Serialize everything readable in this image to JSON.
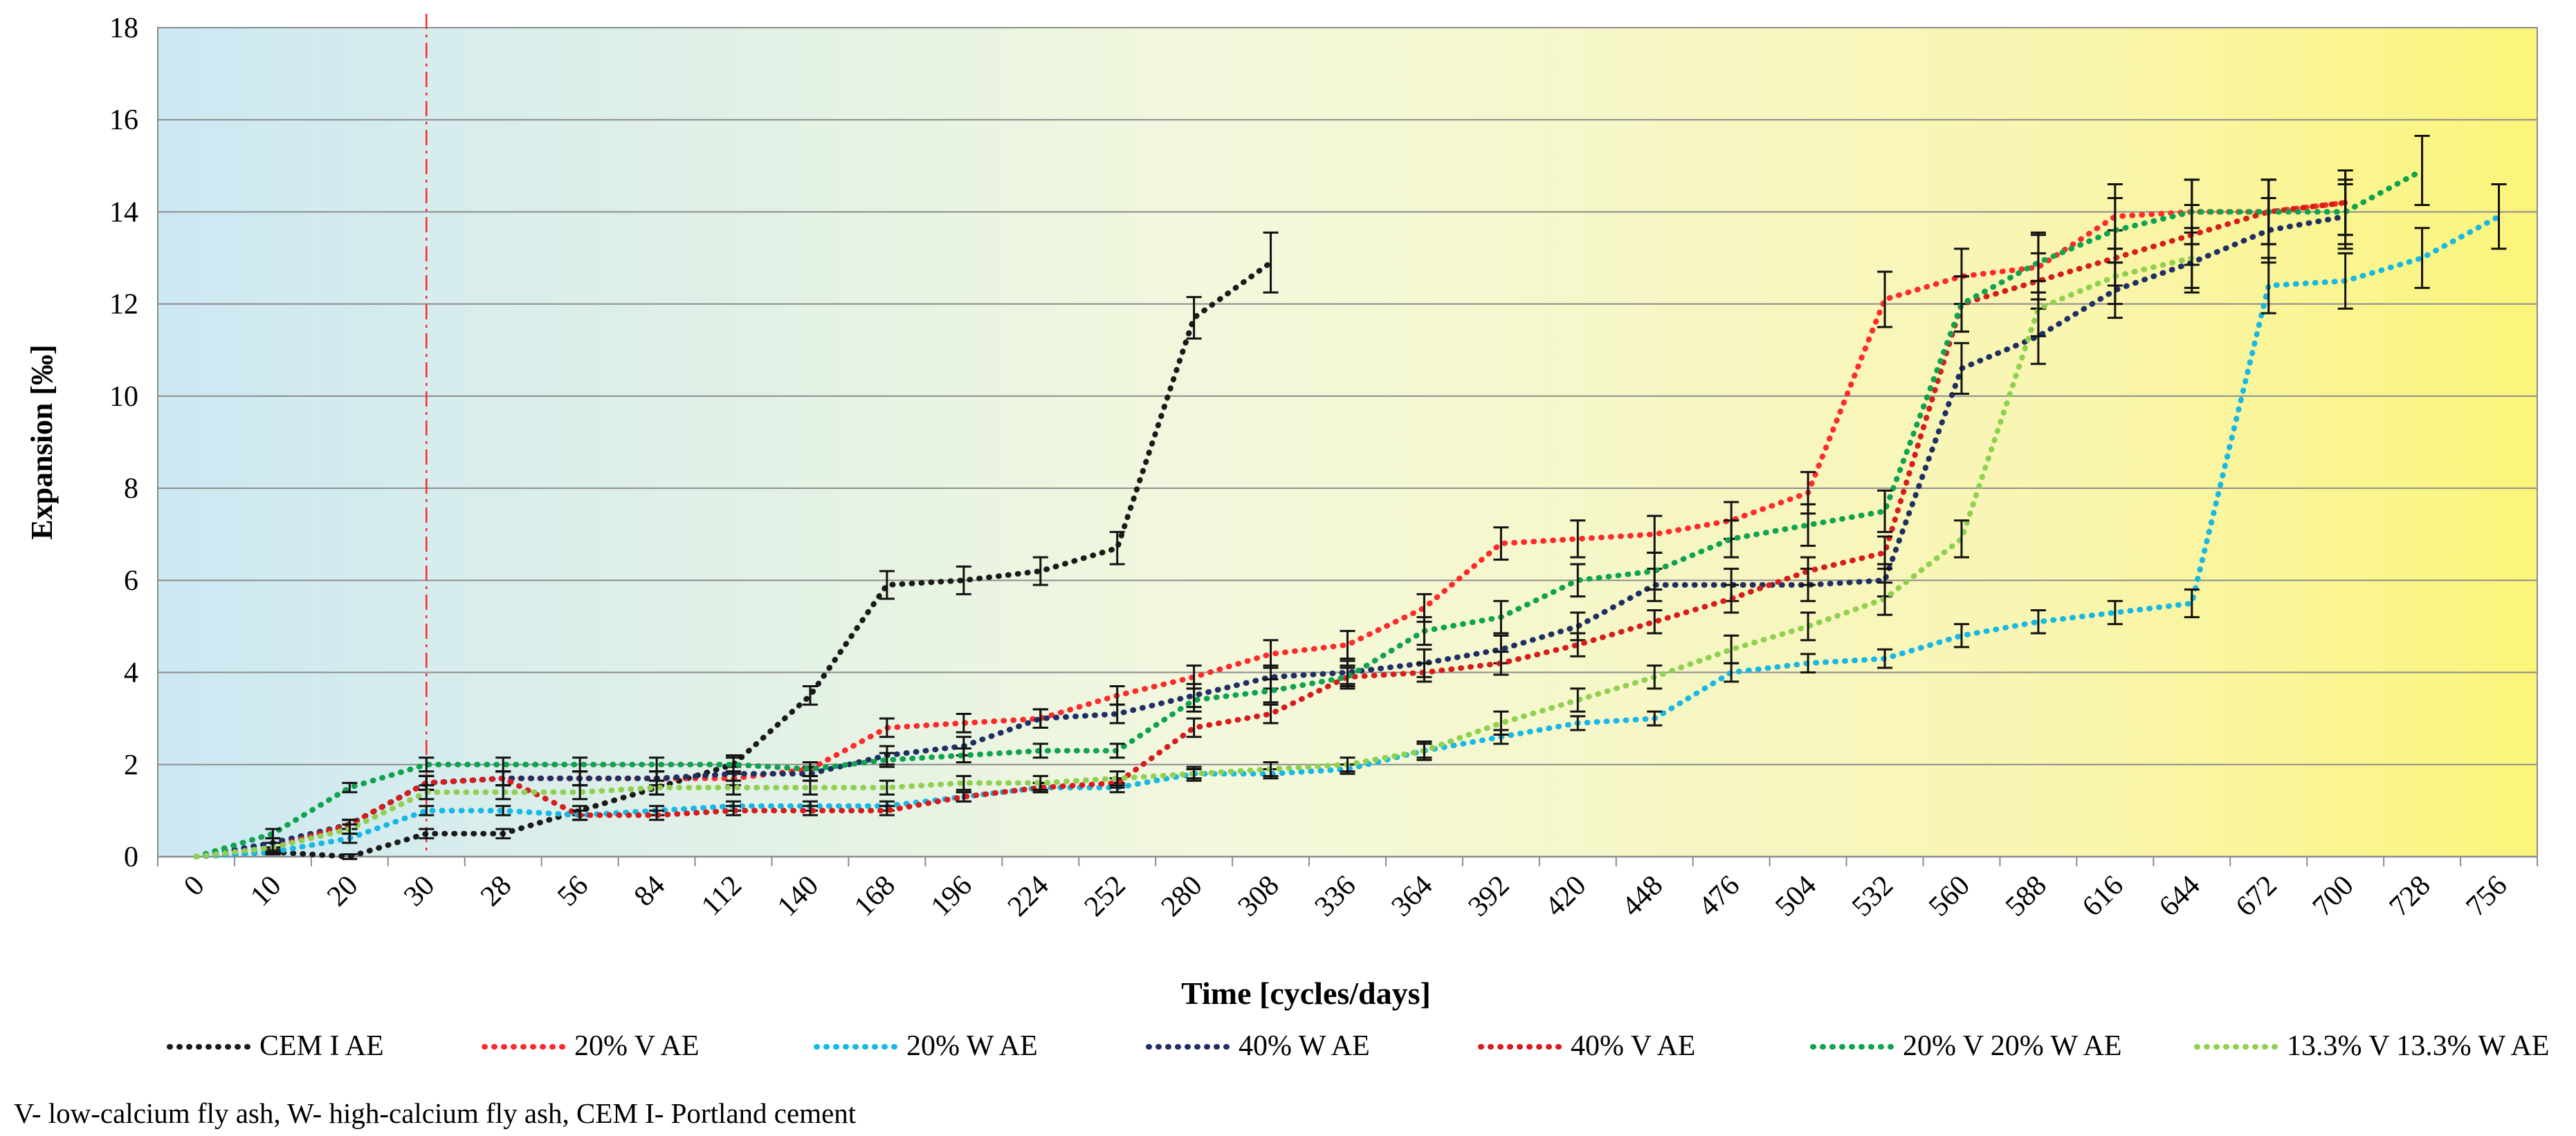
{
  "chart_data": {
    "type": "line",
    "title": "",
    "xlabel": "Time [cycles/days]",
    "ylabel": "Expansion [‰]",
    "ylim": [
      0,
      18
    ],
    "yticks": [
      0,
      2,
      4,
      6,
      8,
      10,
      12,
      14,
      16,
      18
    ],
    "grid": true,
    "legend_position": "bottom",
    "categories": [
      "0",
      "10",
      "20",
      "30",
      "28",
      "56",
      "84",
      "112",
      "140",
      "168",
      "196",
      "224",
      "252",
      "280",
      "308",
      "336",
      "364",
      "392",
      "420",
      "448",
      "476",
      "504",
      "532",
      "560",
      "588",
      "616",
      "644",
      "672",
      "700",
      "728",
      "756"
    ],
    "marker_category": "30",
    "series": [
      {
        "name": "CEM I AE",
        "color": "#1a1a1a",
        "values": [
          0,
          0.1,
          0,
          0.5,
          0.5,
          1.0,
          1.5,
          2.0,
          3.5,
          5.9,
          6.0,
          6.2,
          6.7,
          11.7,
          12.9,
          null,
          null,
          null,
          null,
          null,
          null,
          null,
          null,
          null,
          null,
          null,
          null,
          null,
          null,
          null,
          null
        ],
        "errors": [
          0,
          0.05,
          0.05,
          0.1,
          0.1,
          0.1,
          0.15,
          0.2,
          0.2,
          0.3,
          0.3,
          0.3,
          0.35,
          0.45,
          0.65,
          null,
          null,
          null,
          null,
          null,
          null,
          null,
          null,
          null,
          null,
          null,
          null,
          null,
          null,
          null,
          null
        ]
      },
      {
        "name": "20% V AE",
        "color": "#ff2a2a",
        "values": [
          0,
          0.2,
          0.7,
          1.6,
          1.7,
          1.7,
          1.7,
          1.7,
          1.9,
          2.8,
          2.9,
          3.0,
          3.5,
          3.9,
          4.4,
          4.6,
          5.4,
          6.8,
          6.9,
          7.0,
          7.3,
          7.9,
          12.1,
          12.6,
          12.8,
          13.9,
          14.0,
          14.0,
          14.2,
          null,
          null
        ],
        "errors": [
          0,
          0.1,
          0.1,
          0.15,
          0.15,
          0.15,
          0.15,
          0.15,
          0.15,
          0.2,
          0.2,
          0.2,
          0.2,
          0.25,
          0.3,
          0.3,
          0.3,
          0.35,
          0.4,
          0.4,
          0.4,
          0.45,
          0.6,
          0.6,
          0.7,
          0.7,
          0.7,
          0.7,
          0.7,
          null,
          null
        ]
      },
      {
        "name": "20% W AE",
        "color": "#15b8e6",
        "values": [
          0,
          0.1,
          0.4,
          1.0,
          1.0,
          0.9,
          1.0,
          1.1,
          1.1,
          1.1,
          1.3,
          1.5,
          1.5,
          1.8,
          1.8,
          1.9,
          2.3,
          2.6,
          2.9,
          3.0,
          4.0,
          4.2,
          4.3,
          4.8,
          5.1,
          5.3,
          5.5,
          12.4,
          12.5,
          13.0,
          13.9
        ],
        "errors": [
          0,
          0.05,
          0.1,
          0.1,
          0.1,
          0.1,
          0.1,
          0.1,
          0.1,
          0.1,
          0.1,
          0.1,
          0.1,
          0.1,
          0.1,
          0.1,
          0.15,
          0.15,
          0.15,
          0.15,
          0.2,
          0.2,
          0.2,
          0.25,
          0.25,
          0.25,
          0.3,
          0.6,
          0.6,
          0.65,
          0.7
        ]
      },
      {
        "name": "40% W AE",
        "color": "#1f2f66",
        "values": [
          0,
          0.3,
          0.7,
          1.6,
          1.7,
          1.7,
          1.7,
          1.8,
          1.8,
          2.2,
          2.4,
          3.0,
          3.1,
          3.5,
          3.9,
          4.0,
          4.2,
          4.5,
          5.0,
          5.9,
          5.9,
          5.9,
          6.0,
          10.6,
          11.3,
          12.3,
          12.9,
          13.6,
          13.9,
          null,
          null
        ],
        "errors": [
          0,
          0.1,
          0.1,
          0.15,
          0.15,
          0.15,
          0.15,
          0.15,
          0.15,
          0.2,
          0.2,
          0.2,
          0.2,
          0.25,
          0.25,
          0.25,
          0.3,
          0.3,
          0.3,
          0.35,
          0.35,
          0.35,
          0.35,
          0.55,
          0.6,
          0.6,
          0.65,
          0.7,
          0.7,
          null,
          null
        ]
      },
      {
        "name": "40% V AE",
        "color": "#d81c1c",
        "values": [
          0,
          0.2,
          0.7,
          1.6,
          1.7,
          0.9,
          0.9,
          1.0,
          1.0,
          1.0,
          1.3,
          1.5,
          1.6,
          2.8,
          3.1,
          3.9,
          4.0,
          4.2,
          4.6,
          5.1,
          5.6,
          6.2,
          6.6,
          12.0,
          12.5,
          13.0,
          13.5,
          14.0,
          14.2,
          null,
          null
        ],
        "errors": [
          0,
          0.1,
          0.1,
          0.15,
          0.15,
          0.1,
          0.1,
          0.1,
          0.1,
          0.1,
          0.1,
          0.1,
          0.1,
          0.2,
          0.2,
          0.2,
          0.2,
          0.25,
          0.25,
          0.25,
          0.3,
          0.3,
          0.35,
          0.6,
          0.6,
          0.6,
          0.65,
          0.7,
          0.7,
          null,
          null
        ]
      },
      {
        "name": "20% V 20% W AE",
        "color": "#0ea34e",
        "values": [
          0,
          0.5,
          1.5,
          2.0,
          2.0,
          2.0,
          2.0,
          2.0,
          1.9,
          2.1,
          2.2,
          2.3,
          2.3,
          3.4,
          3.6,
          3.9,
          4.9,
          5.2,
          6.0,
          6.2,
          6.9,
          7.2,
          7.5,
          12.0,
          12.9,
          13.6,
          14.0,
          14.0,
          14.0,
          14.9,
          null
        ],
        "errors": [
          0,
          0.1,
          0.1,
          0.15,
          0.15,
          0.15,
          0.15,
          0.15,
          0.15,
          0.15,
          0.15,
          0.15,
          0.15,
          0.25,
          0.25,
          0.25,
          0.3,
          0.35,
          0.35,
          0.4,
          0.4,
          0.45,
          0.45,
          0.6,
          0.65,
          0.7,
          0.7,
          0.7,
          0.7,
          0.75,
          null
        ]
      },
      {
        "name": "13.3% V 13.3% W AE",
        "color": "#8fd14f",
        "values": [
          0,
          0.2,
          0.6,
          1.4,
          1.4,
          1.4,
          1.5,
          1.5,
          1.5,
          1.5,
          1.6,
          1.6,
          1.7,
          1.8,
          1.9,
          2.0,
          2.3,
          2.9,
          3.4,
          3.9,
          4.5,
          5.0,
          5.6,
          6.9,
          11.9,
          12.6,
          13.0,
          null,
          null,
          null,
          null
        ],
        "errors": [
          0,
          0.1,
          0.1,
          0.15,
          0.15,
          0.15,
          0.15,
          0.15,
          0.15,
          0.15,
          0.15,
          0.15,
          0.15,
          0.15,
          0.15,
          0.15,
          0.2,
          0.25,
          0.25,
          0.25,
          0.3,
          0.3,
          0.35,
          0.4,
          0.6,
          0.6,
          0.65,
          null,
          null,
          null,
          null
        ]
      }
    ],
    "footnote": "V- low-calcium fly ash, W- high-calcium fly ash, CEM I- Portland cement"
  }
}
